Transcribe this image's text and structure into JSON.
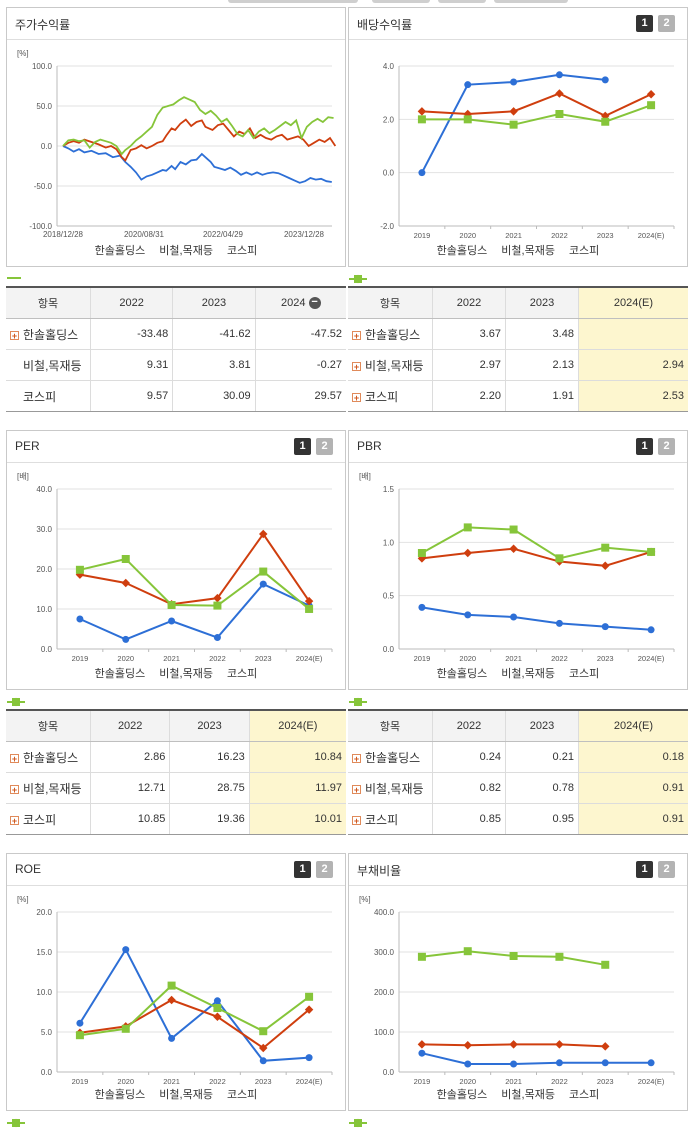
{
  "legend": {
    "s1": "한솔홀딩스",
    "s2": "비철,목재등",
    "s3": "코스피"
  },
  "colors": {
    "s1": "#2d6fd6",
    "s2": "#cf3e0e",
    "s3": "#86c53a"
  },
  "panels": {
    "stock": {
      "title": "주가수익률"
    },
    "dividend": {
      "title": "배당수익률",
      "btn1": "1",
      "btn2": "2"
    },
    "per": {
      "title": "PER",
      "btn1": "1",
      "btn2": "2"
    },
    "pbr": {
      "title": "PBR",
      "btn1": "1",
      "btn2": "2"
    },
    "roe": {
      "title": "ROE",
      "btn1": "1",
      "btn2": "2"
    },
    "debt": {
      "title": "부채비율",
      "btn1": "1",
      "btn2": "2"
    }
  },
  "tables": {
    "stock": {
      "head": [
        "항목",
        "2022",
        "2023",
        "2024"
      ],
      "rows": [
        {
          "name": "한솔홀딩스",
          "v": [
            "-33.48",
            "-41.62",
            "-47.52"
          ]
        },
        {
          "name": "비철,목재등",
          "v": [
            "9.31",
            "3.81",
            "-0.27"
          ]
        },
        {
          "name": "코스피",
          "v": [
            "9.57",
            "30.09",
            "29.57"
          ]
        }
      ]
    },
    "dividend": {
      "head": [
        "항목",
        "2022",
        "2023",
        "2024(E)"
      ],
      "rows": [
        {
          "name": "한솔홀딩스",
          "v": [
            "3.67",
            "3.48",
            ""
          ]
        },
        {
          "name": "비철,목재등",
          "v": [
            "2.97",
            "2.13",
            "2.94"
          ]
        },
        {
          "name": "코스피",
          "v": [
            "2.20",
            "1.91",
            "2.53"
          ]
        }
      ]
    },
    "per": {
      "head": [
        "항목",
        "2022",
        "2023",
        "2024(E)"
      ],
      "rows": [
        {
          "name": "한솔홀딩스",
          "v": [
            "2.86",
            "16.23",
            "10.84"
          ]
        },
        {
          "name": "비철,목재등",
          "v": [
            "12.71",
            "28.75",
            "11.97"
          ]
        },
        {
          "name": "코스피",
          "v": [
            "10.85",
            "19.36",
            "10.01"
          ]
        }
      ]
    },
    "pbr": {
      "head": [
        "항목",
        "2022",
        "2023",
        "2024(E)"
      ],
      "rows": [
        {
          "name": "한솔홀딩스",
          "v": [
            "0.24",
            "0.21",
            "0.18"
          ]
        },
        {
          "name": "비철,목재등",
          "v": [
            "0.82",
            "0.78",
            "0.91"
          ]
        },
        {
          "name": "코스피",
          "v": [
            "0.85",
            "0.95",
            "0.91"
          ]
        }
      ]
    }
  },
  "chart_data": [
    {
      "id": "stock",
      "type": "line",
      "title": "주가수익률",
      "unit": "[%]",
      "x_ticks": [
        "2018/12/28",
        "2020/08/31",
        "2022/04/29",
        "2023/12/28"
      ],
      "ylim": [
        -100,
        100
      ],
      "y_ticks": [
        100,
        50,
        0,
        -50,
        -100
      ],
      "series": [
        {
          "name": "한솔홀딩스",
          "points": [
            [
              0,
              0
            ],
            [
              3,
              -3
            ],
            [
              6,
              -7
            ],
            [
              9,
              -4
            ],
            [
              12,
              -8
            ],
            [
              16,
              -6
            ],
            [
              20,
              -10
            ],
            [
              24,
              -9
            ],
            [
              28,
              -14
            ],
            [
              32,
              -12
            ],
            [
              35,
              -20
            ],
            [
              38,
              -26
            ],
            [
              41,
              -33
            ],
            [
              44,
              -42
            ],
            [
              47,
              -38
            ],
            [
              50,
              -36
            ],
            [
              53,
              -33
            ],
            [
              56,
              -30
            ],
            [
              58,
              -31
            ],
            [
              61,
              -25
            ],
            [
              63,
              -29
            ],
            [
              66,
              -20
            ],
            [
              69,
              -23
            ],
            [
              72,
              -18
            ],
            [
              75,
              -17
            ],
            [
              78,
              -10
            ],
            [
              81,
              -16
            ],
            [
              83,
              -20
            ],
            [
              85,
              -26
            ],
            [
              88,
              -28
            ],
            [
              91,
              -30
            ],
            [
              94,
              -27
            ],
            [
              97,
              -31
            ],
            [
              100,
              -36
            ],
            [
              103,
              -33
            ],
            [
              106,
              -36
            ],
            [
              109,
              -33
            ],
            [
              112,
              -36
            ],
            [
              115,
              -34
            ],
            [
              118,
              -33
            ],
            [
              121,
              -34
            ],
            [
              124,
              -37
            ],
            [
              127,
              -40
            ],
            [
              130,
              -43
            ],
            [
              133,
              -46
            ],
            [
              136,
              -44
            ],
            [
              139,
              -40
            ],
            [
              142,
              -42
            ],
            [
              145,
              -41
            ],
            [
              148,
              -44
            ],
            [
              151,
              -45
            ]
          ]
        },
        {
          "name": "비철,목재등",
          "points": [
            [
              0,
              0
            ],
            [
              3,
              4
            ],
            [
              6,
              6
            ],
            [
              9,
              4
            ],
            [
              12,
              8
            ],
            [
              16,
              5
            ],
            [
              20,
              2
            ],
            [
              24,
              -2
            ],
            [
              27,
              0
            ],
            [
              30,
              -4
            ],
            [
              33,
              -14
            ],
            [
              35,
              -18
            ],
            [
              38,
              -5
            ],
            [
              41,
              -3
            ],
            [
              44,
              1
            ],
            [
              47,
              -3
            ],
            [
              50,
              0
            ],
            [
              53,
              4
            ],
            [
              56,
              6
            ],
            [
              58,
              13
            ],
            [
              61,
              22
            ],
            [
              63,
              20
            ],
            [
              66,
              28
            ],
            [
              69,
              33
            ],
            [
              72,
              25
            ],
            [
              75,
              30
            ],
            [
              78,
              32
            ],
            [
              80,
              24
            ],
            [
              82,
              22
            ],
            [
              84,
              20
            ],
            [
              87,
              26
            ],
            [
              90,
              28
            ],
            [
              93,
              20
            ],
            [
              96,
              12
            ],
            [
              99,
              18
            ],
            [
              102,
              15
            ],
            [
              105,
              22
            ],
            [
              108,
              10
            ],
            [
              111,
              14
            ],
            [
              114,
              10
            ],
            [
              117,
              8
            ],
            [
              120,
              12
            ],
            [
              123,
              14
            ],
            [
              126,
              8
            ],
            [
              129,
              10
            ],
            [
              132,
              12
            ],
            [
              135,
              8
            ],
            [
              138,
              0
            ],
            [
              141,
              4
            ],
            [
              144,
              8
            ],
            [
              147,
              5
            ],
            [
              150,
              10
            ],
            [
              153,
              0
            ]
          ]
        },
        {
          "name": "코스피",
          "points": [
            [
              0,
              0
            ],
            [
              3,
              7
            ],
            [
              6,
              8
            ],
            [
              9,
              6
            ],
            [
              12,
              7
            ],
            [
              15,
              -2
            ],
            [
              18,
              5
            ],
            [
              21,
              8
            ],
            [
              24,
              6
            ],
            [
              27,
              4
            ],
            [
              30,
              0
            ],
            [
              33,
              -10
            ],
            [
              35,
              -5
            ],
            [
              38,
              0
            ],
            [
              41,
              7
            ],
            [
              44,
              12
            ],
            [
              47,
              18
            ],
            [
              50,
              24
            ],
            [
              53,
              39
            ],
            [
              56,
              48
            ],
            [
              59,
              50
            ],
            [
              62,
              52
            ],
            [
              65,
              57
            ],
            [
              68,
              61
            ],
            [
              71,
              58
            ],
            [
              74,
              55
            ],
            [
              77,
              45
            ],
            [
              80,
              40
            ],
            [
              83,
              44
            ],
            [
              86,
              38
            ],
            [
              89,
              30
            ],
            [
              92,
              34
            ],
            [
              95,
              25
            ],
            [
              98,
              15
            ],
            [
              101,
              12
            ],
            [
              104,
              20
            ],
            [
              107,
              10
            ],
            [
              110,
              18
            ],
            [
              113,
              22
            ],
            [
              116,
              16
            ],
            [
              119,
              20
            ],
            [
              122,
              25
            ],
            [
              125,
              30
            ],
            [
              128,
              26
            ],
            [
              131,
              32
            ],
            [
              134,
              10
            ],
            [
              137,
              24
            ],
            [
              140,
              30
            ],
            [
              143,
              34
            ],
            [
              146,
              30
            ],
            [
              149,
              36
            ],
            [
              152,
              35
            ]
          ]
        }
      ]
    },
    {
      "id": "dividend",
      "type": "line",
      "title": "배당수익률",
      "categories": [
        "2019",
        "2020",
        "2021",
        "2022",
        "2023",
        "2024(E)"
      ],
      "ylim": [
        -2,
        4
      ],
      "y_ticks": [
        4,
        2,
        0,
        -2
      ],
      "series": [
        {
          "name": "한솔홀딩스",
          "values": [
            0,
            3.3,
            3.4,
            3.67,
            3.48,
            null
          ]
        },
        {
          "name": "비철,목재등",
          "values": [
            2.3,
            2.2,
            2.3,
            2.97,
            2.13,
            2.94
          ]
        },
        {
          "name": "코스피",
          "values": [
            2.0,
            2.0,
            1.8,
            2.2,
            1.91,
            2.53
          ]
        }
      ]
    },
    {
      "id": "per",
      "type": "line",
      "title": "PER",
      "unit": "[배]",
      "categories": [
        "2019",
        "2020",
        "2021",
        "2022",
        "2023",
        "2024(E)"
      ],
      "ylim": [
        0,
        40
      ],
      "y_ticks": [
        40,
        30,
        20,
        10,
        0
      ],
      "series": [
        {
          "name": "한솔홀딩스",
          "values": [
            7.5,
            2.4,
            7.0,
            2.86,
            16.23,
            10.84
          ]
        },
        {
          "name": "비철,목재등",
          "values": [
            18.6,
            16.5,
            11.2,
            12.71,
            28.75,
            11.97
          ]
        },
        {
          "name": "코스피",
          "values": [
            19.8,
            22.5,
            11.0,
            10.85,
            19.36,
            10.01
          ]
        }
      ]
    },
    {
      "id": "pbr",
      "type": "line",
      "title": "PBR",
      "unit": "[배]",
      "categories": [
        "2019",
        "2020",
        "2021",
        "2022",
        "2023",
        "2024(E)"
      ],
      "ylim": [
        0,
        1.5
      ],
      "y_ticks": [
        1.5,
        1.0,
        0.5,
        0.0
      ],
      "series": [
        {
          "name": "한솔홀딩스",
          "values": [
            0.39,
            0.32,
            0.3,
            0.24,
            0.21,
            0.18
          ]
        },
        {
          "name": "비철,목재등",
          "values": [
            0.85,
            0.9,
            0.94,
            0.82,
            0.78,
            0.91
          ]
        },
        {
          "name": "코스피",
          "values": [
            0.9,
            1.14,
            1.12,
            0.85,
            0.95,
            0.91
          ]
        }
      ]
    },
    {
      "id": "roe",
      "type": "line",
      "title": "ROE",
      "unit": "[%]",
      "categories": [
        "2019",
        "2020",
        "2021",
        "2022",
        "2023",
        "2024(E)"
      ],
      "ylim": [
        0,
        20
      ],
      "y_ticks": [
        20.0,
        15.0,
        10.0,
        5.0,
        0.0
      ],
      "series": [
        {
          "name": "한솔홀딩스",
          "values": [
            6.1,
            15.3,
            4.2,
            8.9,
            1.4,
            1.8
          ]
        },
        {
          "name": "비철,목재등",
          "values": [
            4.9,
            5.7,
            9.0,
            6.9,
            3.0,
            7.8
          ]
        },
        {
          "name": "코스피",
          "values": [
            4.6,
            5.4,
            10.8,
            8.0,
            5.1,
            9.4
          ]
        }
      ]
    },
    {
      "id": "debt",
      "type": "line",
      "title": "부채비율",
      "unit": "[%]",
      "categories": [
        "2019",
        "2020",
        "2021",
        "2022",
        "2023",
        "2024(E)"
      ],
      "ylim": [
        0,
        400
      ],
      "y_ticks": [
        400.0,
        300.0,
        200.0,
        100.0,
        0.0
      ],
      "series": [
        {
          "name": "한솔홀딩스",
          "values": [
            47,
            20,
            20,
            23,
            23,
            23
          ]
        },
        {
          "name": "비철,목재등",
          "values": [
            69,
            67,
            69,
            69,
            64,
            null
          ]
        },
        {
          "name": "코스피",
          "values": [
            288,
            302,
            290,
            288,
            268,
            null
          ]
        }
      ]
    }
  ]
}
